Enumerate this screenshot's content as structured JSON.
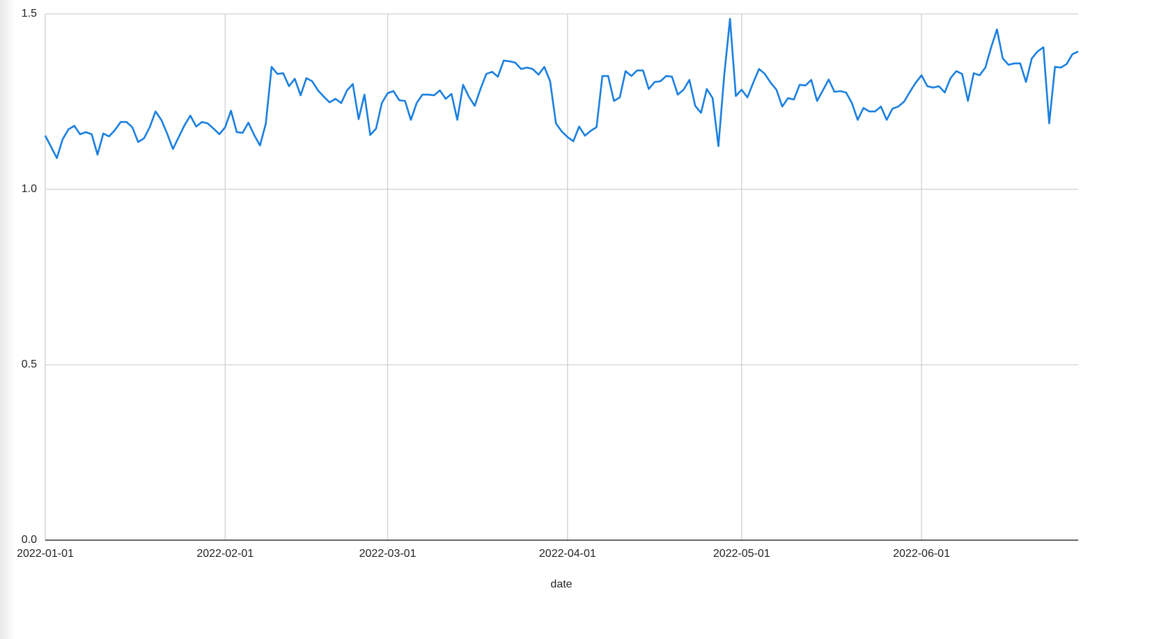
{
  "chart_data": {
    "type": "line",
    "x_label": "date",
    "x": [
      "2022-01-01",
      "2022-01-02",
      "2022-01-03",
      "2022-01-04",
      "2022-01-05",
      "2022-01-06",
      "2022-01-07",
      "2022-01-08",
      "2022-01-09",
      "2022-01-10",
      "2022-01-11",
      "2022-01-12",
      "2022-01-13",
      "2022-01-14",
      "2022-01-15",
      "2022-01-16",
      "2022-01-17",
      "2022-01-18",
      "2022-01-19",
      "2022-01-20",
      "2022-01-21",
      "2022-01-22",
      "2022-01-23",
      "2022-01-24",
      "2022-01-25",
      "2022-01-26",
      "2022-01-27",
      "2022-01-28",
      "2022-01-29",
      "2022-01-30",
      "2022-01-31",
      "2022-02-01",
      "2022-02-02",
      "2022-02-03",
      "2022-02-04",
      "2022-02-05",
      "2022-02-06",
      "2022-02-07",
      "2022-02-08",
      "2022-02-09",
      "2022-02-10",
      "2022-02-11",
      "2022-02-12",
      "2022-02-13",
      "2022-02-14",
      "2022-02-15",
      "2022-02-16",
      "2022-02-17",
      "2022-02-18",
      "2022-02-19",
      "2022-02-20",
      "2022-02-21",
      "2022-02-22",
      "2022-02-23",
      "2022-02-24",
      "2022-02-25",
      "2022-02-26",
      "2022-02-27",
      "2022-02-28",
      "2022-03-01",
      "2022-03-02",
      "2022-03-03",
      "2022-03-04",
      "2022-03-05",
      "2022-03-06",
      "2022-03-07",
      "2022-03-08",
      "2022-03-09",
      "2022-03-10",
      "2022-03-11",
      "2022-03-12",
      "2022-03-13",
      "2022-03-14",
      "2022-03-15",
      "2022-03-16",
      "2022-03-17",
      "2022-03-18",
      "2022-03-19",
      "2022-03-20",
      "2022-03-21",
      "2022-03-22",
      "2022-03-23",
      "2022-03-24",
      "2022-03-25",
      "2022-03-26",
      "2022-03-27",
      "2022-03-28",
      "2022-03-29",
      "2022-03-30",
      "2022-03-31",
      "2022-04-01",
      "2022-04-02",
      "2022-04-03",
      "2022-04-04",
      "2022-04-05",
      "2022-04-06",
      "2022-04-07",
      "2022-04-08",
      "2022-04-09",
      "2022-04-10",
      "2022-04-11",
      "2022-04-12",
      "2022-04-13",
      "2022-04-14",
      "2022-04-15",
      "2022-04-16",
      "2022-04-17",
      "2022-04-18",
      "2022-04-19",
      "2022-04-20",
      "2022-04-21",
      "2022-04-22",
      "2022-04-23",
      "2022-04-24",
      "2022-04-25",
      "2022-04-26",
      "2022-04-27",
      "2022-04-28",
      "2022-04-29",
      "2022-04-30",
      "2022-05-01",
      "2022-05-02",
      "2022-05-03",
      "2022-05-04",
      "2022-05-05",
      "2022-05-06",
      "2022-05-07",
      "2022-05-08",
      "2022-05-09",
      "2022-05-10",
      "2022-05-11",
      "2022-05-12",
      "2022-05-13",
      "2022-05-14",
      "2022-05-15",
      "2022-05-16",
      "2022-05-17",
      "2022-05-18",
      "2022-05-19",
      "2022-05-20",
      "2022-05-21",
      "2022-05-22",
      "2022-05-23",
      "2022-05-24",
      "2022-05-25",
      "2022-05-26",
      "2022-05-27",
      "2022-05-28",
      "2022-05-29",
      "2022-05-30",
      "2022-05-31",
      "2022-06-01",
      "2022-06-02",
      "2022-06-03",
      "2022-06-04",
      "2022-06-05",
      "2022-06-06",
      "2022-06-07",
      "2022-06-08",
      "2022-06-09",
      "2022-06-10",
      "2022-06-11",
      "2022-06-12",
      "2022-06-13",
      "2022-06-14",
      "2022-06-15",
      "2022-06-16",
      "2022-06-17",
      "2022-06-18",
      "2022-06-19",
      "2022-06-20",
      "2022-06-21",
      "2022-06-22",
      "2022-06-23",
      "2022-06-24",
      "2022-06-25",
      "2022-06-26",
      "2022-06-27",
      "2022-06-28"
    ],
    "values": [
      1.153,
      1.121,
      1.089,
      1.143,
      1.171,
      1.181,
      1.157,
      1.163,
      1.157,
      1.099,
      1.159,
      1.151,
      1.169,
      1.192,
      1.192,
      1.177,
      1.135,
      1.145,
      1.177,
      1.222,
      1.198,
      1.159,
      1.115,
      1.149,
      1.183,
      1.21,
      1.179,
      1.192,
      1.188,
      1.173,
      1.157,
      1.177,
      1.224,
      1.163,
      1.161,
      1.19,
      1.155,
      1.125,
      1.187,
      1.349,
      1.329,
      1.331,
      1.294,
      1.315,
      1.268,
      1.317,
      1.308,
      1.282,
      1.264,
      1.248,
      1.258,
      1.246,
      1.282,
      1.3,
      1.2,
      1.27,
      1.155,
      1.173,
      1.246,
      1.274,
      1.28,
      1.254,
      1.252,
      1.198,
      1.246,
      1.27,
      1.27,
      1.268,
      1.282,
      1.258,
      1.272,
      1.198,
      1.298,
      1.264,
      1.238,
      1.286,
      1.329,
      1.335,
      1.321,
      1.367,
      1.365,
      1.361,
      1.343,
      1.347,
      1.343,
      1.327,
      1.349,
      1.308,
      1.188,
      1.165,
      1.149,
      1.137,
      1.179,
      1.153,
      1.167,
      1.177,
      1.323,
      1.323,
      1.252,
      1.262,
      1.337,
      1.323,
      1.339,
      1.339,
      1.286,
      1.306,
      1.308,
      1.323,
      1.321,
      1.27,
      1.284,
      1.312,
      1.238,
      1.218,
      1.286,
      1.26,
      1.123,
      1.325,
      1.486,
      1.266,
      1.284,
      1.262,
      1.304,
      1.343,
      1.329,
      1.304,
      1.284,
      1.236,
      1.26,
      1.256,
      1.298,
      1.296,
      1.312,
      1.252,
      1.282,
      1.313,
      1.278,
      1.28,
      1.276,
      1.246,
      1.198,
      1.232,
      1.222,
      1.222,
      1.236,
      1.198,
      1.23,
      1.236,
      1.25,
      1.278,
      1.304,
      1.325,
      1.294,
      1.29,
      1.294,
      1.276,
      1.317,
      1.337,
      1.329,
      1.252,
      1.331,
      1.325,
      1.347,
      1.405,
      1.456,
      1.373,
      1.355,
      1.359,
      1.359,
      1.306,
      1.373,
      1.393,
      1.405,
      1.188,
      1.349,
      1.347,
      1.357,
      1.385,
      1.393
    ],
    "color": "#1a7fe0",
    "xlim": [
      "2022-01-01",
      "2022-06-28"
    ],
    "xticks": [
      "2022-01-01",
      "2022-02-01",
      "2022-03-01",
      "2022-04-01",
      "2022-05-01",
      "2022-06-01"
    ],
    "ylim": [
      0,
      1.5
    ],
    "yticks": [
      {
        "value": 0,
        "label": "0.0"
      },
      {
        "value": 0.5,
        "label": "0.5"
      },
      {
        "value": 1,
        "label": "1.0"
      },
      {
        "value": 1.5,
        "label": "1.5"
      }
    ],
    "grid": true
  }
}
